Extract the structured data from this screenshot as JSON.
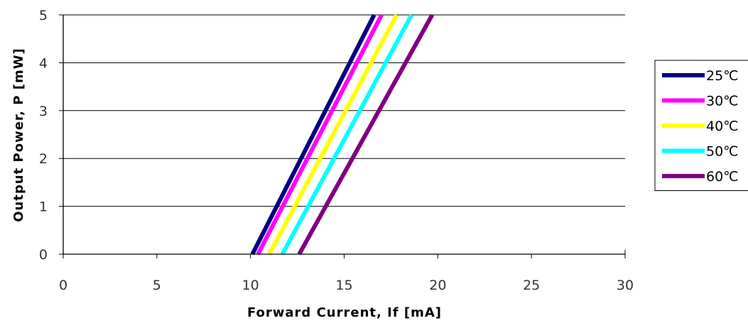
{
  "chart_data": {
    "type": "line",
    "title": "",
    "xlabel": "Forward Current, If [mA]",
    "ylabel": "Output Power, P [mW]",
    "xlim": [
      0,
      30
    ],
    "ylim": [
      0,
      5
    ],
    "xticks": [
      "0",
      "5",
      "10",
      "15",
      "20",
      "25",
      "30"
    ],
    "yticks": [
      "0",
      "1",
      "2",
      "3",
      "4",
      "5"
    ],
    "grid": "horizontal",
    "legend_position": "right",
    "series": [
      {
        "name": "25℃",
        "color": "#000080",
        "x": [
          10.1,
          16.6
        ],
        "y": [
          0,
          5
        ]
      },
      {
        "name": "30℃",
        "color": "#FF00FF",
        "x": [
          10.4,
          17.0
        ],
        "y": [
          0,
          5
        ]
      },
      {
        "name": "40℃",
        "color": "#FFFF00",
        "x": [
          11.0,
          17.8
        ],
        "y": [
          0,
          5
        ]
      },
      {
        "name": "50℃",
        "color": "#00FFFF",
        "x": [
          11.7,
          18.6
        ],
        "y": [
          0,
          5
        ]
      },
      {
        "name": "60℃",
        "color": "#800080",
        "x": [
          12.6,
          19.7
        ],
        "y": [
          0,
          5
        ]
      }
    ]
  }
}
